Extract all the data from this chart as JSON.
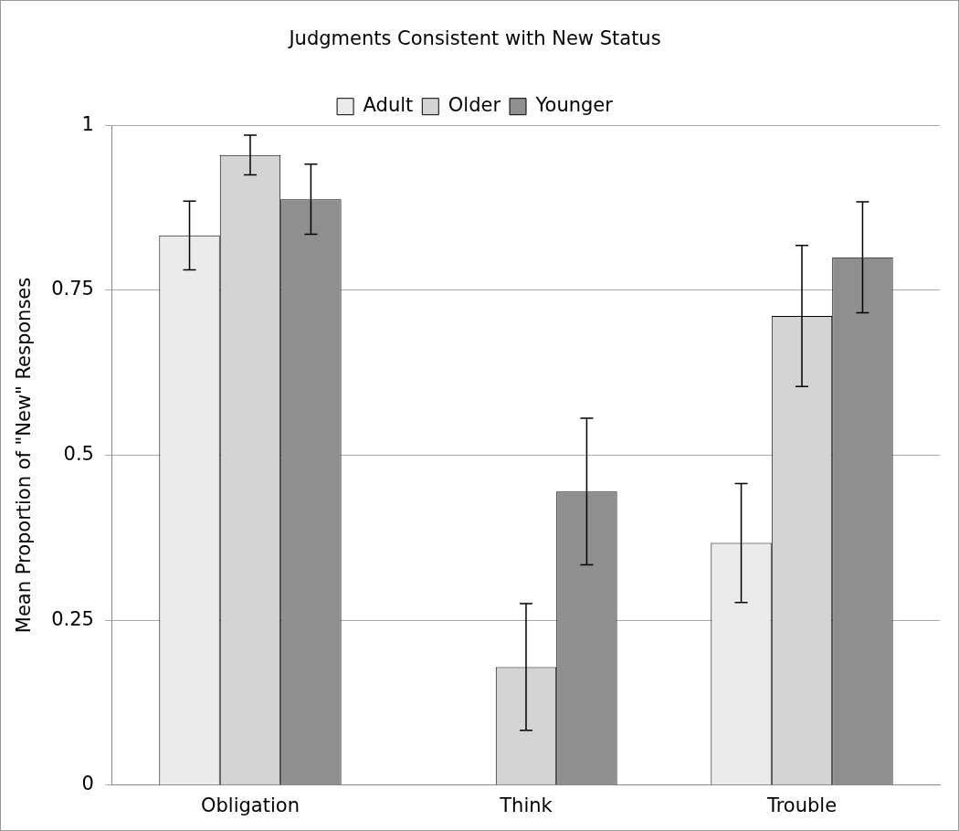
{
  "chart_data": {
    "type": "bar",
    "title": "Judgments Consistent with New Status",
    "ylabel": "Mean Proportion of \"New\" Responses",
    "categories": [
      "Obligation",
      "Think",
      "Trouble"
    ],
    "series": [
      {
        "name": "Adult",
        "color": "#ebebeb",
        "values": [
          0.833,
          0,
          0.367
        ],
        "errors": [
          0.052,
          null,
          0.09
        ]
      },
      {
        "name": "Older",
        "color": "#d4d4d4",
        "values": [
          0.955,
          0.179,
          0.711
        ],
        "errors": [
          0.03,
          0.096,
          0.107
        ]
      },
      {
        "name": "Younger",
        "color": "#8f8f8f",
        "values": [
          0.888,
          0.445,
          0.8
        ],
        "errors": [
          0.053,
          0.111,
          0.084
        ]
      }
    ],
    "ylim": [
      0,
      1
    ],
    "yticks": [
      0,
      0.25,
      0.5,
      0.75,
      1
    ],
    "grid": "y",
    "legend": "top"
  }
}
